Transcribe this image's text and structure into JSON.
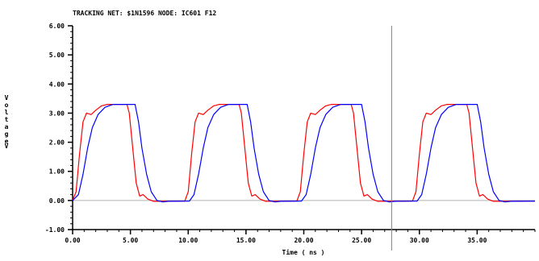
{
  "chart_data": {
    "type": "line",
    "title": "TRACKING NET:  $1N1596  NODE:  IC601 F12",
    "xlabel": "Time ( ns )",
    "ylabel": "Voltage",
    "yunit": "V",
    "xlim": [
      0,
      40
    ],
    "ylim": [
      -1,
      6
    ],
    "xticks": [
      0,
      5,
      10,
      15,
      20,
      25,
      30,
      35
    ],
    "xtick_labels": [
      "0.00",
      "5.00",
      "10.00",
      "15.00",
      "20.00",
      "25.00",
      "30.00",
      "35.00"
    ],
    "yticks": [
      -1,
      0,
      1,
      2,
      3,
      4,
      5,
      6
    ],
    "ytick_labels": [
      "-1.00",
      "0.00",
      "1.00",
      "2.00",
      "3.00",
      "4.00",
      "5.00",
      "6.00"
    ],
    "cursor_x": 27.6,
    "colors": {
      "series_red": "#ff0000",
      "series_blue": "#0000ff",
      "cursor": "#808080",
      "zero_line": "#b0b0b0"
    },
    "series": [
      {
        "color": "#ff0000",
        "points": [
          [
            0.0,
            0.0
          ],
          [
            0.3,
            0.3
          ],
          [
            0.6,
            1.6
          ],
          [
            0.9,
            2.7
          ],
          [
            1.2,
            3.0
          ],
          [
            1.6,
            2.95
          ],
          [
            2.0,
            3.1
          ],
          [
            2.5,
            3.25
          ],
          [
            3.0,
            3.3
          ],
          [
            4.7,
            3.3
          ],
          [
            4.9,
            3.0
          ],
          [
            5.2,
            1.8
          ],
          [
            5.5,
            0.6
          ],
          [
            5.8,
            0.15
          ],
          [
            6.1,
            0.2
          ],
          [
            6.5,
            0.05
          ],
          [
            7.0,
            -0.03
          ],
          [
            9.7,
            -0.02
          ],
          [
            10.0,
            0.3
          ],
          [
            10.3,
            1.6
          ],
          [
            10.6,
            2.7
          ],
          [
            10.9,
            3.0
          ],
          [
            11.3,
            2.95
          ],
          [
            11.7,
            3.1
          ],
          [
            12.2,
            3.25
          ],
          [
            12.7,
            3.3
          ],
          [
            14.4,
            3.3
          ],
          [
            14.6,
            3.0
          ],
          [
            14.9,
            1.8
          ],
          [
            15.2,
            0.6
          ],
          [
            15.5,
            0.15
          ],
          [
            15.8,
            0.2
          ],
          [
            16.2,
            0.05
          ],
          [
            16.7,
            -0.03
          ],
          [
            19.4,
            -0.02
          ],
          [
            19.7,
            0.3
          ],
          [
            20.0,
            1.6
          ],
          [
            20.3,
            2.7
          ],
          [
            20.6,
            3.0
          ],
          [
            21.0,
            2.95
          ],
          [
            21.4,
            3.1
          ],
          [
            21.9,
            3.25
          ],
          [
            22.4,
            3.3
          ],
          [
            24.1,
            3.3
          ],
          [
            24.3,
            3.0
          ],
          [
            24.6,
            1.8
          ],
          [
            24.9,
            0.6
          ],
          [
            25.2,
            0.15
          ],
          [
            25.5,
            0.2
          ],
          [
            25.9,
            0.05
          ],
          [
            26.4,
            -0.03
          ],
          [
            29.4,
            -0.02
          ],
          [
            29.7,
            0.3
          ],
          [
            30.0,
            1.6
          ],
          [
            30.3,
            2.7
          ],
          [
            30.6,
            3.0
          ],
          [
            31.0,
            2.95
          ],
          [
            31.4,
            3.1
          ],
          [
            31.9,
            3.25
          ],
          [
            32.4,
            3.3
          ],
          [
            34.1,
            3.3
          ],
          [
            34.3,
            3.0
          ],
          [
            34.6,
            1.8
          ],
          [
            34.9,
            0.6
          ],
          [
            35.2,
            0.15
          ],
          [
            35.5,
            0.2
          ],
          [
            35.9,
            0.05
          ],
          [
            36.4,
            -0.03
          ],
          [
            40.0,
            -0.02
          ]
        ]
      },
      {
        "color": "#0000ff",
        "points": [
          [
            0.0,
            0.0
          ],
          [
            0.5,
            0.2
          ],
          [
            0.9,
            0.9
          ],
          [
            1.3,
            1.8
          ],
          [
            1.7,
            2.5
          ],
          [
            2.2,
            2.95
          ],
          [
            2.8,
            3.2
          ],
          [
            3.5,
            3.3
          ],
          [
            5.4,
            3.3
          ],
          [
            5.7,
            2.7
          ],
          [
            6.0,
            1.8
          ],
          [
            6.4,
            0.9
          ],
          [
            6.8,
            0.3
          ],
          [
            7.3,
            0.0
          ],
          [
            7.8,
            -0.05
          ],
          [
            8.3,
            -0.03
          ],
          [
            10.1,
            -0.02
          ],
          [
            10.5,
            0.2
          ],
          [
            10.9,
            0.9
          ],
          [
            11.3,
            1.8
          ],
          [
            11.7,
            2.5
          ],
          [
            12.2,
            2.95
          ],
          [
            12.8,
            3.2
          ],
          [
            13.5,
            3.3
          ],
          [
            15.1,
            3.3
          ],
          [
            15.4,
            2.7
          ],
          [
            15.7,
            1.8
          ],
          [
            16.1,
            0.9
          ],
          [
            16.5,
            0.3
          ],
          [
            17.0,
            0.0
          ],
          [
            17.5,
            -0.05
          ],
          [
            18.0,
            -0.03
          ],
          [
            19.8,
            -0.02
          ],
          [
            20.2,
            0.2
          ],
          [
            20.6,
            0.9
          ],
          [
            21.0,
            1.8
          ],
          [
            21.4,
            2.5
          ],
          [
            21.9,
            2.95
          ],
          [
            22.5,
            3.2
          ],
          [
            23.2,
            3.3
          ],
          [
            25.0,
            3.3
          ],
          [
            25.3,
            2.7
          ],
          [
            25.6,
            1.8
          ],
          [
            26.0,
            0.9
          ],
          [
            26.4,
            0.3
          ],
          [
            26.9,
            0.0
          ],
          [
            27.4,
            -0.05
          ],
          [
            27.9,
            -0.03
          ],
          [
            29.8,
            -0.02
          ],
          [
            30.2,
            0.2
          ],
          [
            30.6,
            0.9
          ],
          [
            31.0,
            1.8
          ],
          [
            31.4,
            2.5
          ],
          [
            31.9,
            2.95
          ],
          [
            32.5,
            3.2
          ],
          [
            33.2,
            3.3
          ],
          [
            35.0,
            3.3
          ],
          [
            35.3,
            2.7
          ],
          [
            35.6,
            1.8
          ],
          [
            36.0,
            0.9
          ],
          [
            36.4,
            0.3
          ],
          [
            36.9,
            0.0
          ],
          [
            37.4,
            -0.05
          ],
          [
            37.9,
            -0.03
          ],
          [
            40.0,
            -0.02
          ]
        ]
      }
    ]
  }
}
